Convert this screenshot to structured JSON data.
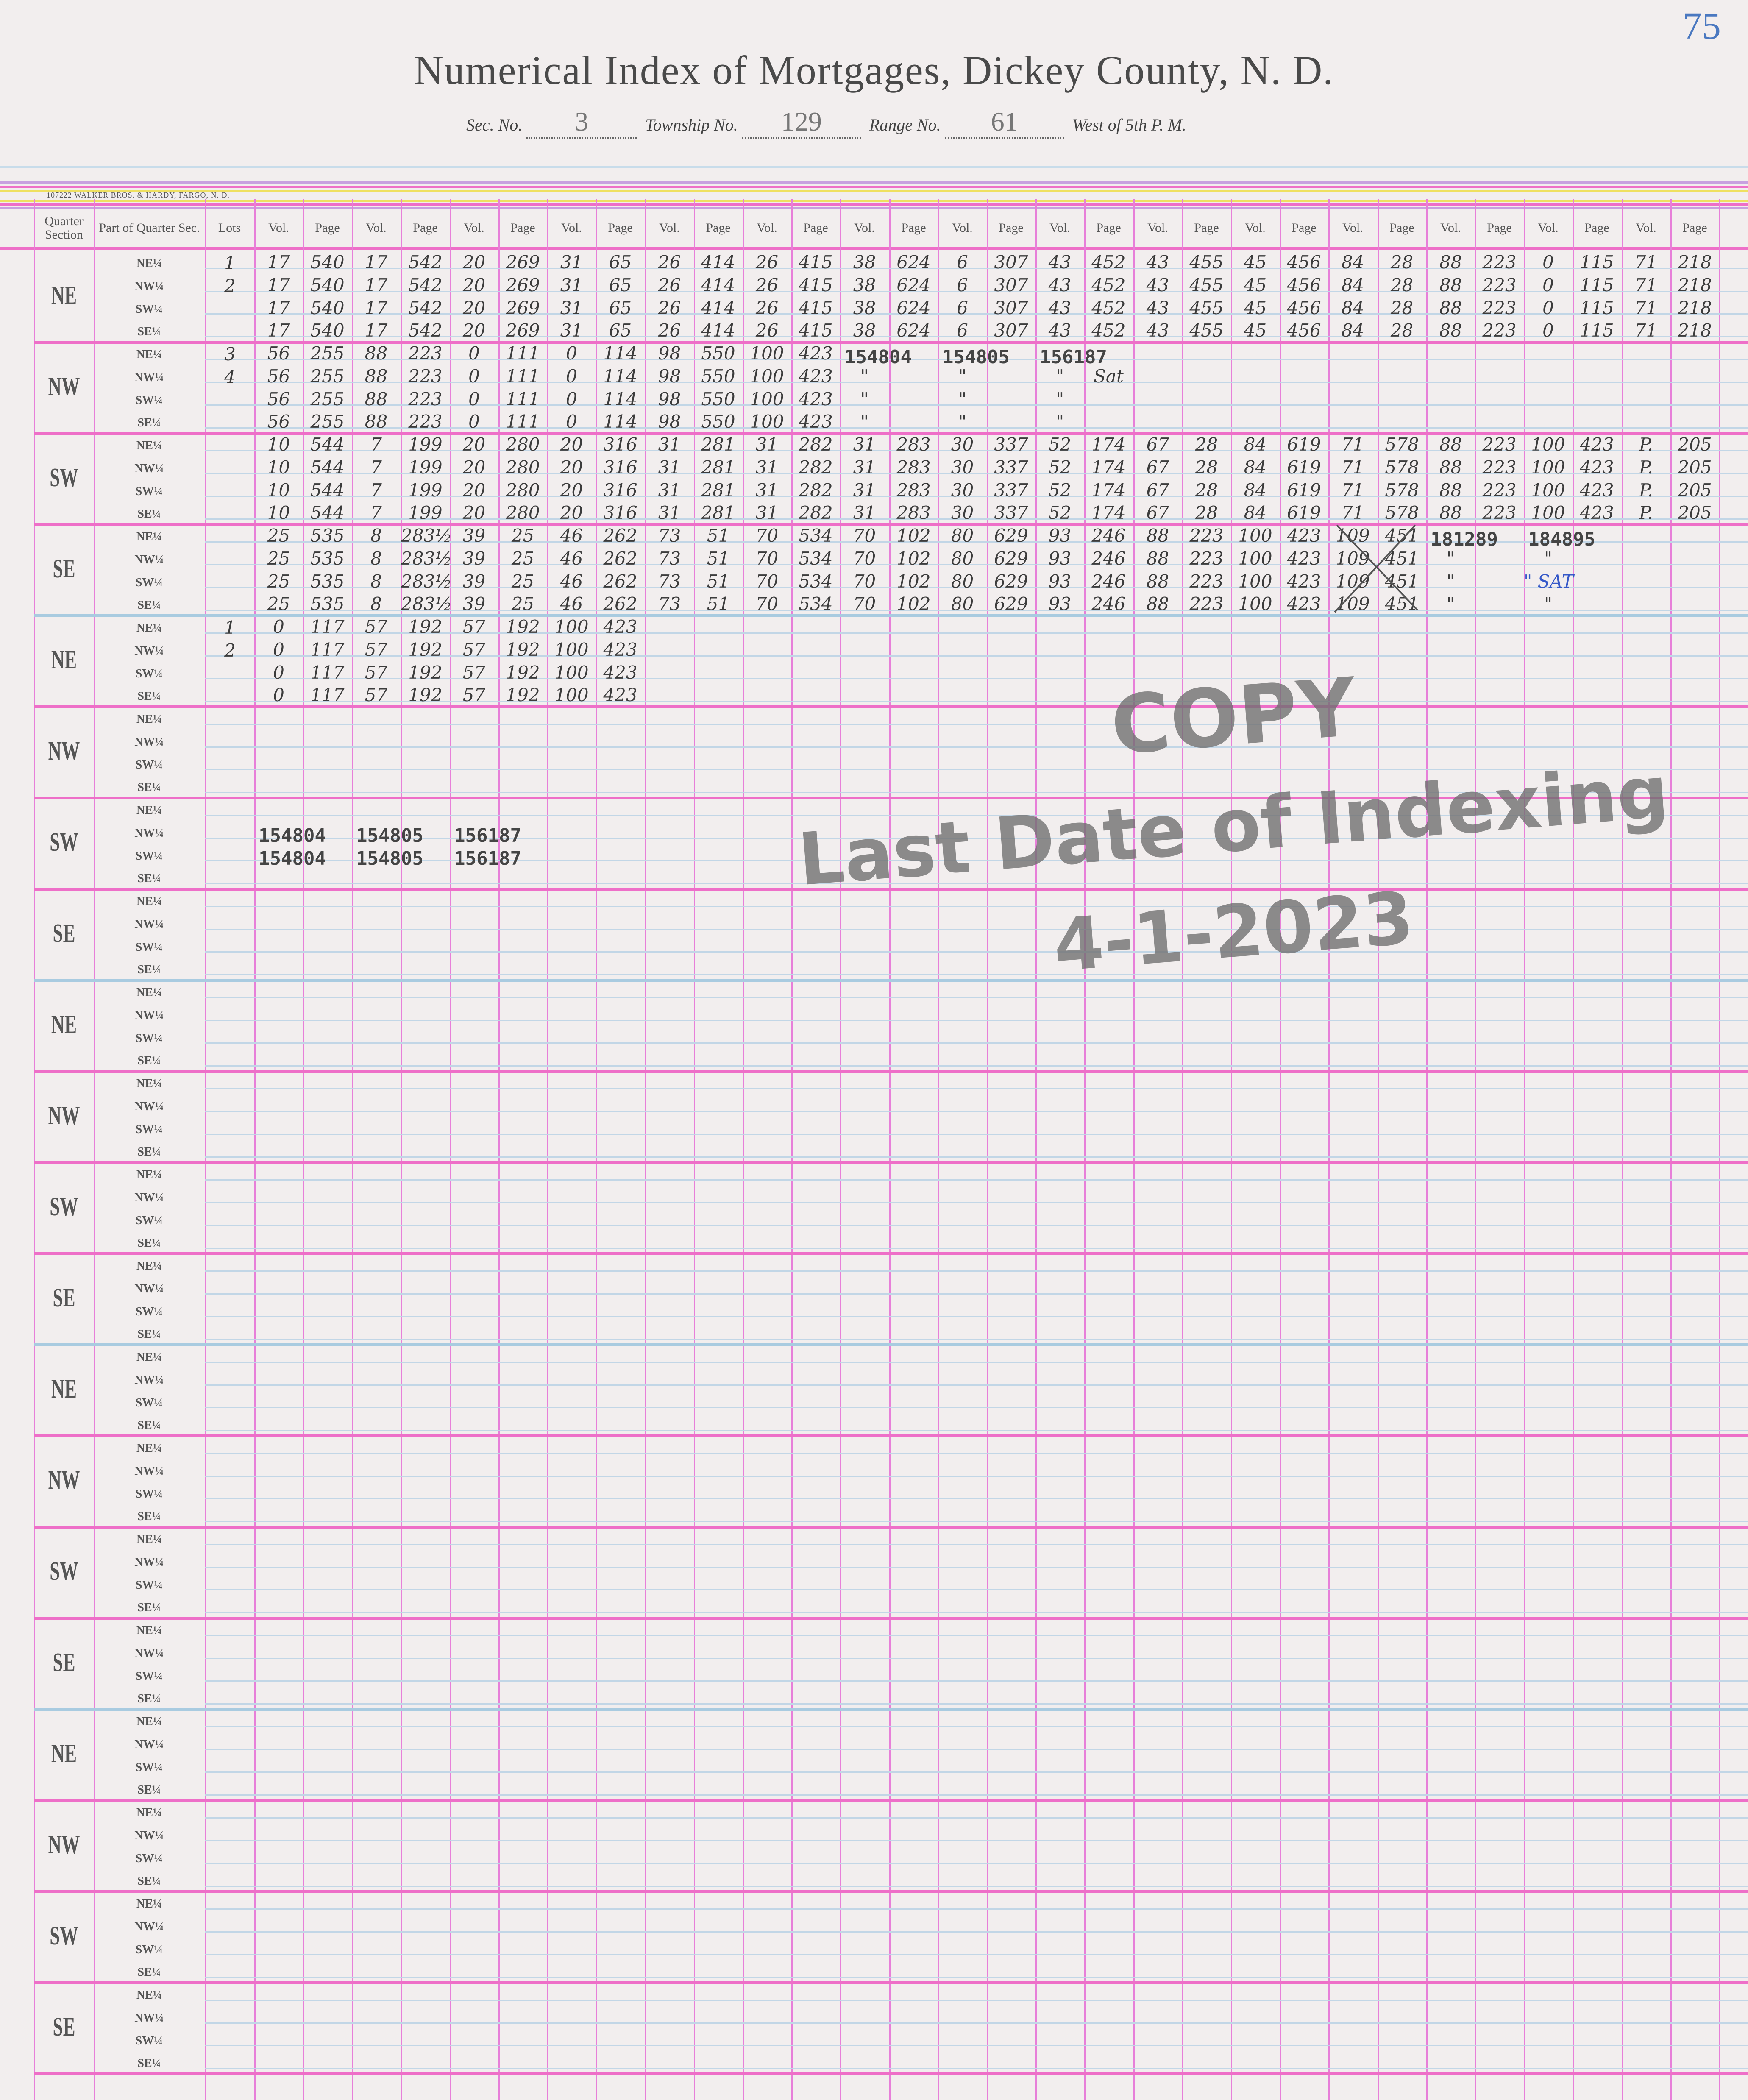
{
  "header": {
    "page_number": "75",
    "title": "Numerical Index of Mortgages, Dickey County, N. D.",
    "sec_label": "Sec. No.",
    "sec_value": "3",
    "township_label": "Township No.",
    "township_value": "129",
    "range_label": "Range No.",
    "range_value": "61",
    "meridian": "West of 5th P. M.",
    "printer": "107222  WALKER BROS. & HARDY, FARGO, N. D."
  },
  "column_headers": {
    "quarter": "Quarter Section",
    "part": "Part of Quarter Sec.",
    "lots": "Lots",
    "vol": "Vol.",
    "page": "Page"
  },
  "quarters": [
    "NE",
    "NW",
    "SW",
    "SE"
  ],
  "parts": [
    "NE¼",
    "NW¼",
    "SW¼",
    "SE¼"
  ],
  "groups": [
    {
      "quarter": "NE",
      "lots": [
        "1",
        "2",
        "",
        ""
      ],
      "rows": [
        [
          "17",
          "540",
          "17",
          "542",
          "20",
          "269",
          "31",
          "65",
          "26",
          "414",
          "26",
          "415",
          "38",
          "624",
          "6",
          "307",
          "43",
          "452",
          "43",
          "455",
          "45",
          "456",
          "84",
          "28",
          "88",
          "223",
          "0",
          "115",
          "71",
          "218"
        ],
        [
          "17",
          "540",
          "17",
          "542",
          "20",
          "269",
          "31",
          "65",
          "26",
          "414",
          "26",
          "415",
          "38",
          "624",
          "6",
          "307",
          "43",
          "452",
          "43",
          "455",
          "45",
          "456",
          "84",
          "28",
          "88",
          "223",
          "0",
          "115",
          "71",
          "218"
        ],
        [
          "17",
          "540",
          "17",
          "542",
          "20",
          "269",
          "31",
          "65",
          "26",
          "414",
          "26",
          "415",
          "38",
          "624",
          "6",
          "307",
          "43",
          "452",
          "43",
          "455",
          "45",
          "456",
          "84",
          "28",
          "88",
          "223",
          "0",
          "115",
          "71",
          "218"
        ],
        [
          "17",
          "540",
          "17",
          "542",
          "20",
          "269",
          "31",
          "65",
          "26",
          "414",
          "26",
          "415",
          "38",
          "624",
          "6",
          "307",
          "43",
          "452",
          "43",
          "455",
          "45",
          "456",
          "84",
          "28",
          "88",
          "223",
          "0",
          "115",
          "71",
          "218"
        ]
      ]
    },
    {
      "quarter": "NW",
      "lots": [
        "3",
        "4",
        "",
        ""
      ],
      "rows": [
        [
          "56",
          "255",
          "88",
          "223",
          "0",
          "111",
          "0",
          "114",
          "98",
          "550",
          "100",
          "423",
          "154804",
          "",
          "154805",
          "",
          "156187",
          "",
          "",
          "",
          "",
          "",
          "",
          "",
          "",
          "",
          "",
          "",
          "",
          ""
        ],
        [
          "56",
          "255",
          "88",
          "223",
          "0",
          "111",
          "0",
          "114",
          "98",
          "550",
          "100",
          "423",
          "\"",
          "",
          "\"",
          "",
          "\"",
          "Sat",
          "",
          "",
          "",
          "",
          "",
          "",
          "",
          "",
          "",
          "",
          "",
          ""
        ],
        [
          "56",
          "255",
          "88",
          "223",
          "0",
          "111",
          "0",
          "114",
          "98",
          "550",
          "100",
          "423",
          "\"",
          "",
          "\"",
          "",
          "\"",
          "",
          "",
          "",
          "",
          "",
          "",
          "",
          "",
          "",
          "",
          "",
          "",
          ""
        ],
        [
          "56",
          "255",
          "88",
          "223",
          "0",
          "111",
          "0",
          "114",
          "98",
          "550",
          "100",
          "423",
          "\"",
          "",
          "\"",
          "",
          "\"",
          "",
          "",
          "",
          "",
          "",
          "",
          "",
          "",
          "",
          "",
          "",
          "",
          ""
        ]
      ]
    },
    {
      "quarter": "SW",
      "lots": [
        "",
        "",
        "",
        ""
      ],
      "rows": [
        [
          "10",
          "544",
          "7",
          "199",
          "20",
          "280",
          "20",
          "316",
          "31",
          "281",
          "31",
          "282",
          "31",
          "283",
          "30",
          "337",
          "52",
          "174",
          "67",
          "28",
          "84",
          "619",
          "71",
          "578",
          "88",
          "223",
          "100",
          "423",
          "P.",
          "205"
        ],
        [
          "10",
          "544",
          "7",
          "199",
          "20",
          "280",
          "20",
          "316",
          "31",
          "281",
          "31",
          "282",
          "31",
          "283",
          "30",
          "337",
          "52",
          "174",
          "67",
          "28",
          "84",
          "619",
          "71",
          "578",
          "88",
          "223",
          "100",
          "423",
          "P.",
          "205"
        ],
        [
          "10",
          "544",
          "7",
          "199",
          "20",
          "280",
          "20",
          "316",
          "31",
          "281",
          "31",
          "282",
          "31",
          "283",
          "30",
          "337",
          "52",
          "174",
          "67",
          "28",
          "84",
          "619",
          "71",
          "578",
          "88",
          "223",
          "100",
          "423",
          "P.",
          "205"
        ],
        [
          "10",
          "544",
          "7",
          "199",
          "20",
          "280",
          "20",
          "316",
          "31",
          "281",
          "31",
          "282",
          "31",
          "283",
          "30",
          "337",
          "52",
          "174",
          "67",
          "28",
          "84",
          "619",
          "71",
          "578",
          "88",
          "223",
          "100",
          "423",
          "P.",
          "205"
        ]
      ]
    },
    {
      "quarter": "SE",
      "lots": [
        "",
        "",
        "",
        ""
      ],
      "rows": [
        [
          "25",
          "535",
          "8",
          "283½",
          "39",
          "25",
          "46",
          "262",
          "73",
          "51",
          "70",
          "534",
          "70",
          "102",
          "80",
          "629",
          "93",
          "246",
          "88",
          "223",
          "100",
          "423",
          "109",
          "451",
          "181289",
          "",
          "184895",
          "",
          "",
          ""
        ],
        [
          "25",
          "535",
          "8",
          "283½",
          "39",
          "25",
          "46",
          "262",
          "73",
          "51",
          "70",
          "534",
          "70",
          "102",
          "80",
          "629",
          "93",
          "246",
          "88",
          "223",
          "100",
          "423",
          "109",
          "451",
          "\"",
          "",
          "\"",
          "",
          "",
          ""
        ],
        [
          "25",
          "535",
          "8",
          "283½",
          "39",
          "25",
          "46",
          "262",
          "73",
          "51",
          "70",
          "534",
          "70",
          "102",
          "80",
          "629",
          "93",
          "246",
          "88",
          "223",
          "100",
          "423",
          "109",
          "451",
          "\"",
          "",
          "\" SAT",
          "",
          "",
          ""
        ],
        [
          "25",
          "535",
          "8",
          "283½",
          "39",
          "25",
          "46",
          "262",
          "73",
          "51",
          "70",
          "534",
          "70",
          "102",
          "80",
          "629",
          "93",
          "246",
          "88",
          "223",
          "100",
          "423",
          "109",
          "451",
          "\"",
          "",
          "\"",
          "",
          "",
          ""
        ]
      ]
    },
    {
      "quarter": "NE",
      "lots": [
        "1",
        "2",
        "",
        ""
      ],
      "rows": [
        [
          "0",
          "117",
          "57",
          "192",
          "57",
          "192",
          "100",
          "423",
          "",
          "",
          "",
          "",
          "",
          "",
          "",
          "",
          "",
          "",
          "",
          "",
          "",
          "",
          "",
          "",
          "",
          "",
          "",
          "",
          "",
          ""
        ],
        [
          "0",
          "117",
          "57",
          "192",
          "57",
          "192",
          "100",
          "423",
          "",
          "",
          "",
          "",
          "",
          "",
          "",
          "",
          "",
          "",
          "",
          "",
          "",
          "",
          "",
          "",
          "",
          "",
          "",
          "",
          "",
          ""
        ],
        [
          "0",
          "117",
          "57",
          "192",
          "57",
          "192",
          "100",
          "423",
          "",
          "",
          "",
          "",
          "",
          "",
          "",
          "",
          "",
          "",
          "",
          "",
          "",
          "",
          "",
          "",
          "",
          "",
          "",
          "",
          "",
          ""
        ],
        [
          "0",
          "117",
          "57",
          "192",
          "57",
          "192",
          "100",
          "423",
          "",
          "",
          "",
          "",
          "",
          "",
          "",
          "",
          "",
          "",
          "",
          "",
          "",
          "",
          "",
          "",
          "",
          "",
          "",
          "",
          "",
          ""
        ]
      ]
    },
    {
      "quarter": "NW",
      "lots": [
        "",
        "",
        "",
        ""
      ],
      "rows": [
        [],
        [],
        [],
        []
      ]
    },
    {
      "quarter": "SW",
      "lots": [
        "",
        "",
        "",
        ""
      ],
      "rows": [
        [],
        [
          "154804",
          "",
          "154805",
          "",
          "156187",
          "",
          "",
          "",
          "",
          "",
          "",
          "",
          "",
          "",
          "",
          "",
          "",
          "",
          "",
          "",
          "",
          "",
          "",
          "",
          "",
          "",
          "",
          "",
          "",
          ""
        ],
        [
          "154804",
          "",
          "154805",
          "",
          "156187",
          "",
          "",
          "",
          "",
          "",
          "",
          "",
          "",
          "",
          "",
          "",
          "",
          "",
          "",
          "",
          "",
          "",
          "",
          "",
          "",
          "",
          "",
          "",
          "",
          ""
        ],
        []
      ]
    },
    {
      "quarter": "SE",
      "lots": [
        "",
        "",
        "",
        ""
      ],
      "rows": [
        [],
        [],
        [],
        []
      ]
    },
    {
      "quarter": "NE",
      "lots": [
        "",
        "",
        "",
        ""
      ],
      "rows": [
        [],
        [],
        [],
        []
      ]
    },
    {
      "quarter": "NW",
      "lots": [
        "",
        "",
        "",
        ""
      ],
      "rows": [
        [],
        [],
        [],
        []
      ]
    },
    {
      "quarter": "SW",
      "lots": [
        "",
        "",
        "",
        ""
      ],
      "rows": [
        [],
        [],
        [],
        []
      ]
    },
    {
      "quarter": "SE",
      "lots": [
        "",
        "",
        "",
        ""
      ],
      "rows": [
        [],
        [],
        [],
        []
      ]
    },
    {
      "quarter": "NE",
      "lots": [
        "",
        "",
        "",
        ""
      ],
      "rows": [
        [],
        [],
        [],
        []
      ]
    },
    {
      "quarter": "NW",
      "lots": [
        "",
        "",
        "",
        ""
      ],
      "rows": [
        [],
        [],
        [],
        []
      ]
    },
    {
      "quarter": "SW",
      "lots": [
        "",
        "",
        "",
        ""
      ],
      "rows": [
        [],
        [],
        [],
        []
      ]
    },
    {
      "quarter": "SE",
      "lots": [
        "",
        "",
        "",
        ""
      ],
      "rows": [
        [],
        [],
        [],
        []
      ]
    },
    {
      "quarter": "NE",
      "lots": [
        "",
        "",
        "",
        ""
      ],
      "rows": [
        [],
        [],
        [],
        []
      ]
    },
    {
      "quarter": "NW",
      "lots": [
        "",
        "",
        "",
        ""
      ],
      "rows": [
        [],
        [],
        [],
        []
      ]
    },
    {
      "quarter": "SW",
      "lots": [
        "",
        "",
        "",
        ""
      ],
      "rows": [
        [],
        [],
        [],
        []
      ]
    },
    {
      "quarter": "SE",
      "lots": [
        "",
        "",
        "",
        ""
      ],
      "rows": [
        [],
        [],
        [],
        []
      ]
    }
  ],
  "watermark": {
    "line1": "COPY",
    "line2": "Last Date of Indexing",
    "line3": "4-1-2023"
  },
  "colors": {
    "paper": "#f2eeee",
    "rule_pink": "#e77fd9",
    "rule_blue": "#c2d6e6",
    "ink": "#3c3c3c",
    "page_number_ink": "#4a78c0",
    "watermark": "#6e6e6e"
  }
}
